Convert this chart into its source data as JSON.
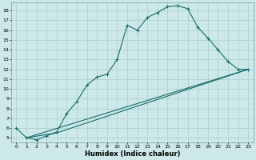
{
  "xlabel": "Humidex (Indice chaleur)",
  "bg_color": "#cce8e8",
  "grid_color": "#aacccc",
  "line_color": "#1a6b6b",
  "xlim": [
    -0.5,
    23.5
  ],
  "ylim": [
    4.5,
    18.8
  ],
  "yticks": [
    5,
    6,
    7,
    8,
    9,
    10,
    11,
    12,
    13,
    14,
    15,
    16,
    17,
    18
  ],
  "xticks": [
    0,
    1,
    2,
    3,
    4,
    5,
    6,
    7,
    8,
    9,
    10,
    11,
    12,
    13,
    14,
    15,
    16,
    17,
    18,
    19,
    20,
    21,
    22,
    23
  ],
  "curve1_x": [
    0,
    1,
    2,
    3,
    4,
    5,
    6,
    7,
    8,
    9,
    10,
    11,
    12,
    13,
    14,
    15,
    16,
    17,
    18,
    19,
    20,
    21,
    22,
    23
  ],
  "curve1_y": [
    6.0,
    5.0,
    4.8,
    5.2,
    5.6,
    7.5,
    8.7,
    10.4,
    11.2,
    11.5,
    13.0,
    16.5,
    16.0,
    17.3,
    17.8,
    18.4,
    18.5,
    18.2,
    16.3,
    15.2,
    14.0,
    12.8,
    12.0,
    12.0
  ],
  "line2_x": [
    1,
    23
  ],
  "line2_y": [
    5.0,
    12.0
  ],
  "line3_x": [
    1,
    4,
    23
  ],
  "line3_y": [
    5.0,
    5.5,
    12.0
  ]
}
